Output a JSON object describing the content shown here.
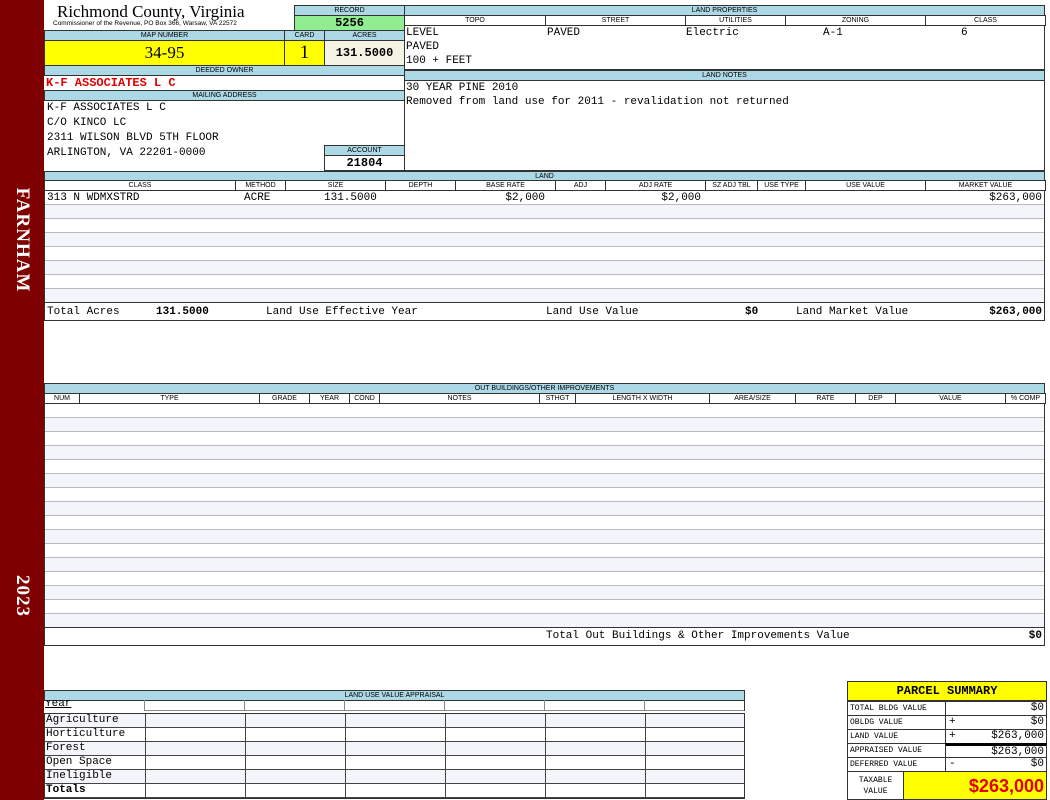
{
  "sidebar": {
    "district": "FARNHAM",
    "year": "2023",
    "color": "#7f0000"
  },
  "header": {
    "title": "Richmond County, Virginia",
    "subtitle": "Commissioner of the Revenue, PO Box 366, Warsaw, VA 22572",
    "record_label": "RECORD",
    "record": "5256",
    "map_label": "MAP NUMBER",
    "map_number": "34-95",
    "card_label": "CARD",
    "card": "1",
    "acres_label": "ACRES",
    "acres": "131.5000",
    "owner_label": "DEEDED OWNER",
    "owner": "K-F ASSOCIATES L C",
    "mailing_label": "MAILING ADDRESS",
    "mailing": [
      "K-F ASSOCIATES L C",
      "C/O KINCO LC",
      "2311 WILSON BLVD 5TH FLOOR",
      "ARLINGTON, VA 22201-0000"
    ],
    "account_label": "ACCOUNT",
    "account": "21804"
  },
  "land_properties": {
    "title": "LAND PROPERTIES",
    "columns": [
      "TOPO",
      "STREET",
      "UTILITIES",
      "ZONING",
      "CLASS"
    ],
    "topo": [
      "LEVEL",
      "PAVED",
      "100 + FEET"
    ],
    "street": "PAVED",
    "utilities": "Electric",
    "zoning": "A-1",
    "class": "6"
  },
  "land_notes": {
    "title": "LAND NOTES",
    "lines": [
      "30 YEAR PINE 2010",
      "Removed from land use for 2011 - revalidation not returned"
    ]
  },
  "land": {
    "title": "LAND",
    "columns": [
      "CLASS",
      "METHOD",
      "SIZE",
      "DEPTH",
      "BASE RATE",
      "ADJ",
      "ADJ RATE",
      "SZ ADJ TBL",
      "USE TYPE",
      "USE VALUE",
      "MARKET VALUE"
    ],
    "rows": [
      {
        "class": "313 N WDMXSTRD",
        "method": "ACRE",
        "size": "131.5000",
        "base_rate": "$2,000",
        "adj_rate": "$2,000",
        "market_value": "$263,000"
      }
    ],
    "totals": {
      "acres_label": "Total Acres",
      "acres": "131.5000",
      "eff_year_label": "Land Use Effective Year",
      "use_value_label": "Land Use Value",
      "use_value": "$0",
      "market_label": "Land Market Value",
      "market": "$263,000"
    }
  },
  "outbuildings": {
    "title": "OUT BUILDINGS/OTHER IMPROVEMENTS",
    "columns": [
      "NUM",
      "TYPE",
      "GRADE",
      "YEAR",
      "COND",
      "NOTES",
      "STHGT",
      "LENGTH X WIDTH",
      "AREA/SIZE",
      "RATE",
      "DEP",
      "VALUE",
      "% COMP"
    ],
    "total_label": "Total Out Buildings & Other Improvements Value",
    "total": "$0"
  },
  "land_use": {
    "title": "LAND USE VALUE APPRAISAL",
    "year_label": "Year",
    "rows": [
      "Agriculture",
      "Horticulture",
      "Forest",
      "Open Space",
      "Ineligible"
    ],
    "totals_label": "Totals"
  },
  "summary": {
    "title": "PARCEL SUMMARY",
    "rows": [
      {
        "label": "TOTAL BLDG VALUE",
        "sign": "",
        "value": "$0"
      },
      {
        "label": "OBLDG VALUE",
        "sign": "+",
        "value": "$0"
      },
      {
        "label": "LAND VALUE",
        "sign": "+",
        "value": "$263,000"
      },
      {
        "label": "APPRAISED VALUE",
        "sign": "",
        "value": "$263,000"
      },
      {
        "label": "DEFERRED VALUE",
        "sign": "-",
        "value": "$0"
      }
    ],
    "taxable_label": "TAXABLE VALUE",
    "taxable": "$263,000"
  }
}
